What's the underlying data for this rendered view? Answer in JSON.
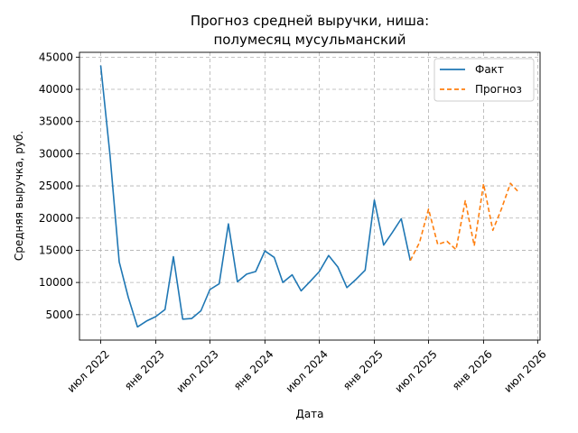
{
  "chart_data": {
    "type": "line",
    "title_lines": [
      "Прогноз средней выручки, ниша:",
      "полумесяц мусульманский"
    ],
    "xlabel": "Дата",
    "ylabel": "Средняя выручка, руб.",
    "x_ticks": [
      {
        "date": "2022-07-01",
        "label": "июл 2022"
      },
      {
        "date": "2023-01-01",
        "label": "янв 2023"
      },
      {
        "date": "2023-07-01",
        "label": "июл 2023"
      },
      {
        "date": "2024-01-01",
        "label": "янв 2024"
      },
      {
        "date": "2024-07-01",
        "label": "июл 2024"
      },
      {
        "date": "2025-01-01",
        "label": "янв 2025"
      },
      {
        "date": "2025-07-01",
        "label": "июл 2025"
      },
      {
        "date": "2026-01-01",
        "label": "янв 2026"
      },
      {
        "date": "2026-07-01",
        "label": "июл 2026"
      }
    ],
    "y_ticks": [
      5000,
      10000,
      15000,
      20000,
      25000,
      30000,
      35000,
      40000,
      45000
    ],
    "xlim": [
      "2022-04-21",
      "2026-07-09"
    ],
    "ylim": [
      1050,
      45750
    ],
    "grid": true,
    "legend_position": "top-right",
    "series": [
      {
        "name": "Факт",
        "color": "#1f77b4",
        "style": "solid",
        "points": [
          {
            "x": "2022-07-01",
            "y": 43700
          },
          {
            "x": "2022-08-01",
            "y": 29800
          },
          {
            "x": "2022-09-01",
            "y": 13200
          },
          {
            "x": "2022-10-01",
            "y": 7700
          },
          {
            "x": "2022-11-01",
            "y": 3100
          },
          {
            "x": "2022-12-01",
            "y": 4000
          },
          {
            "x": "2023-01-01",
            "y": 4700
          },
          {
            "x": "2023-02-01",
            "y": 5800
          },
          {
            "x": "2023-03-01",
            "y": 14000
          },
          {
            "x": "2023-04-01",
            "y": 4300
          },
          {
            "x": "2023-05-01",
            "y": 4400
          },
          {
            "x": "2023-06-01",
            "y": 5600
          },
          {
            "x": "2023-07-01",
            "y": 8900
          },
          {
            "x": "2023-08-01",
            "y": 9800
          },
          {
            "x": "2023-09-01",
            "y": 19100
          },
          {
            "x": "2023-10-01",
            "y": 10100
          },
          {
            "x": "2023-11-01",
            "y": 11300
          },
          {
            "x": "2023-12-01",
            "y": 11700
          },
          {
            "x": "2024-01-01",
            "y": 14900
          },
          {
            "x": "2024-02-01",
            "y": 13900
          },
          {
            "x": "2024-03-01",
            "y": 10000
          },
          {
            "x": "2024-04-01",
            "y": 11200
          },
          {
            "x": "2024-05-01",
            "y": 8700
          },
          {
            "x": "2024-06-01",
            "y": 10200
          },
          {
            "x": "2024-07-01",
            "y": 11700
          },
          {
            "x": "2024-08-01",
            "y": 14200
          },
          {
            "x": "2024-09-01",
            "y": 12400
          },
          {
            "x": "2024-10-01",
            "y": 9200
          },
          {
            "x": "2024-11-01",
            "y": 10500
          },
          {
            "x": "2024-12-01",
            "y": 11900
          },
          {
            "x": "2025-01-01",
            "y": 22800
          },
          {
            "x": "2025-02-01",
            "y": 15800
          },
          {
            "x": "2025-03-01",
            "y": 17700
          },
          {
            "x": "2025-04-01",
            "y": 19900
          },
          {
            "x": "2025-05-01",
            "y": 13400
          }
        ]
      },
      {
        "name": "Прогноз",
        "color": "#ff7f0e",
        "style": "dashed",
        "points": [
          {
            "x": "2025-05-01",
            "y": 13400
          },
          {
            "x": "2025-06-01",
            "y": 16200
          },
          {
            "x": "2025-07-01",
            "y": 21400
          },
          {
            "x": "2025-08-01",
            "y": 15900
          },
          {
            "x": "2025-09-01",
            "y": 16400
          },
          {
            "x": "2025-10-01",
            "y": 15100
          },
          {
            "x": "2025-11-01",
            "y": 22700
          },
          {
            "x": "2025-12-01",
            "y": 15700
          },
          {
            "x": "2026-01-01",
            "y": 25300
          },
          {
            "x": "2026-02-01",
            "y": 18100
          },
          {
            "x": "2026-03-01",
            "y": 21300
          },
          {
            "x": "2026-04-01",
            "y": 25400
          },
          {
            "x": "2026-05-01",
            "y": 23900
          }
        ]
      }
    ]
  }
}
